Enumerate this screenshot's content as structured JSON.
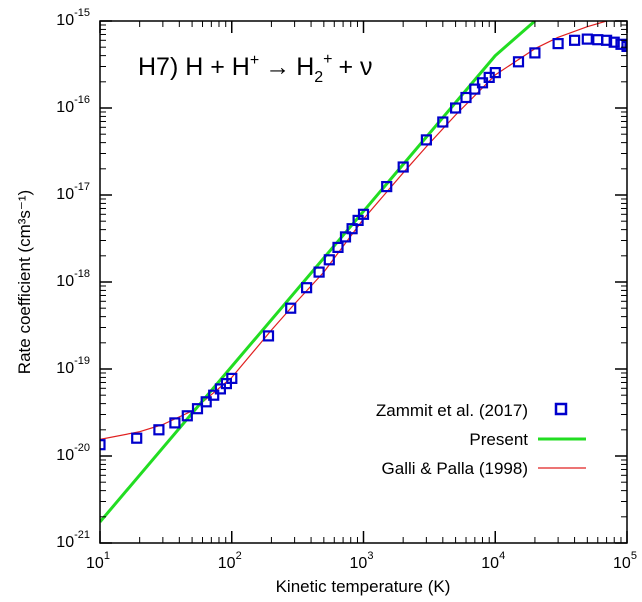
{
  "chart_data": {
    "type": "line",
    "title": "",
    "xlabel": "Kinetic temperature (K)",
    "ylabel": "Rate coefficient (cm³s⁻¹)",
    "xscale": "log",
    "yscale": "log",
    "xlim": [
      10,
      100000
    ],
    "ylim": [
      1e-21,
      1e-15
    ],
    "x_ticks": [
      {
        "value": 10,
        "base": "10",
        "exp": "1"
      },
      {
        "value": 100,
        "base": "10",
        "exp": "2"
      },
      {
        "value": 1000,
        "base": "10",
        "exp": "3"
      },
      {
        "value": 10000,
        "base": "10",
        "exp": "4"
      },
      {
        "value": 100000,
        "base": "10",
        "exp": "5"
      }
    ],
    "y_ticks": [
      {
        "value": 1e-21,
        "base": "10",
        "exp": "-21"
      },
      {
        "value": 1e-20,
        "base": "10",
        "exp": "-20"
      },
      {
        "value": 1e-19,
        "base": "10",
        "exp": "-19"
      },
      {
        "value": 1e-18,
        "base": "10",
        "exp": "-18"
      },
      {
        "value": 1e-17,
        "base": "10",
        "exp": "-17"
      },
      {
        "value": 1e-16,
        "base": "10",
        "exp": "-16"
      },
      {
        "value": 1e-15,
        "base": "10",
        "exp": "-15"
      }
    ],
    "annotation": {
      "prefix": "H7) H + H",
      "sup1": "+",
      "arrow": "→",
      "product": "H",
      "sub": "2",
      "sup2": "+",
      "suffix": "+ ν"
    },
    "legend_position": "bottom-right",
    "grid": false,
    "series": [
      {
        "name": "Zammit et al. (2017)",
        "style": "square-markers",
        "color": "#0000cc",
        "x": [
          10,
          19,
          28,
          37,
          46,
          55,
          64,
          73,
          82,
          91,
          100,
          190,
          280,
          370,
          460,
          550,
          640,
          730,
          820,
          910,
          1000,
          1500,
          2000,
          3000,
          4000,
          5000,
          6000,
          7000,
          8000,
          9000,
          10000,
          15000,
          20000,
          30000,
          40000,
          50000,
          60000,
          70000,
          80000,
          90000,
          100000
        ],
        "y": [
          1.35e-20,
          1.6e-20,
          2e-20,
          2.4e-20,
          2.9e-20,
          3.5e-20,
          4.2e-20,
          5e-20,
          5.9e-20,
          6.8e-20,
          7.8e-20,
          2.4e-19,
          5e-19,
          8.6e-19,
          1.3e-18,
          1.8e-18,
          2.5e-18,
          3.3e-18,
          4.1e-18,
          5.1e-18,
          6e-18,
          1.25e-17,
          2.1e-17,
          4.3e-17,
          6.9e-17,
          1e-16,
          1.32e-16,
          1.65e-16,
          1.95e-16,
          2.25e-16,
          2.55e-16,
          3.4e-16,
          4.3e-16,
          5.5e-16,
          6e-16,
          6.2e-16,
          6.1e-16,
          6e-16,
          5.7e-16,
          5.4e-16,
          5.1e-16
        ]
      },
      {
        "name": "Present",
        "style": "thick-line",
        "color": "#22dd22",
        "x": [
          10,
          100,
          1000,
          10000,
          20000
        ],
        "y": [
          1.75e-21,
          1.07e-19,
          6.5e-18,
          4e-16,
          1e-15
        ]
      },
      {
        "name": "Galli & Palla (1998)",
        "style": "thin-line",
        "color": "#e02020",
        "x": [
          10,
          20,
          30,
          50,
          100,
          200,
          300,
          500,
          1000,
          2000,
          3000,
          5000,
          10000,
          20000,
          30000,
          50000,
          70000
        ],
        "y": [
          1.55e-20,
          1.9e-20,
          2.3e-20,
          3.3e-20,
          8e-20,
          2.8e-19,
          5.6e-19,
          1.3e-18,
          5.3e-18,
          1.8e-17,
          3.6e-17,
          8.3e-17,
          2.4e-16,
          4.8e-16,
          6.5e-16,
          8.6e-16,
          1e-15
        ]
      }
    ]
  }
}
